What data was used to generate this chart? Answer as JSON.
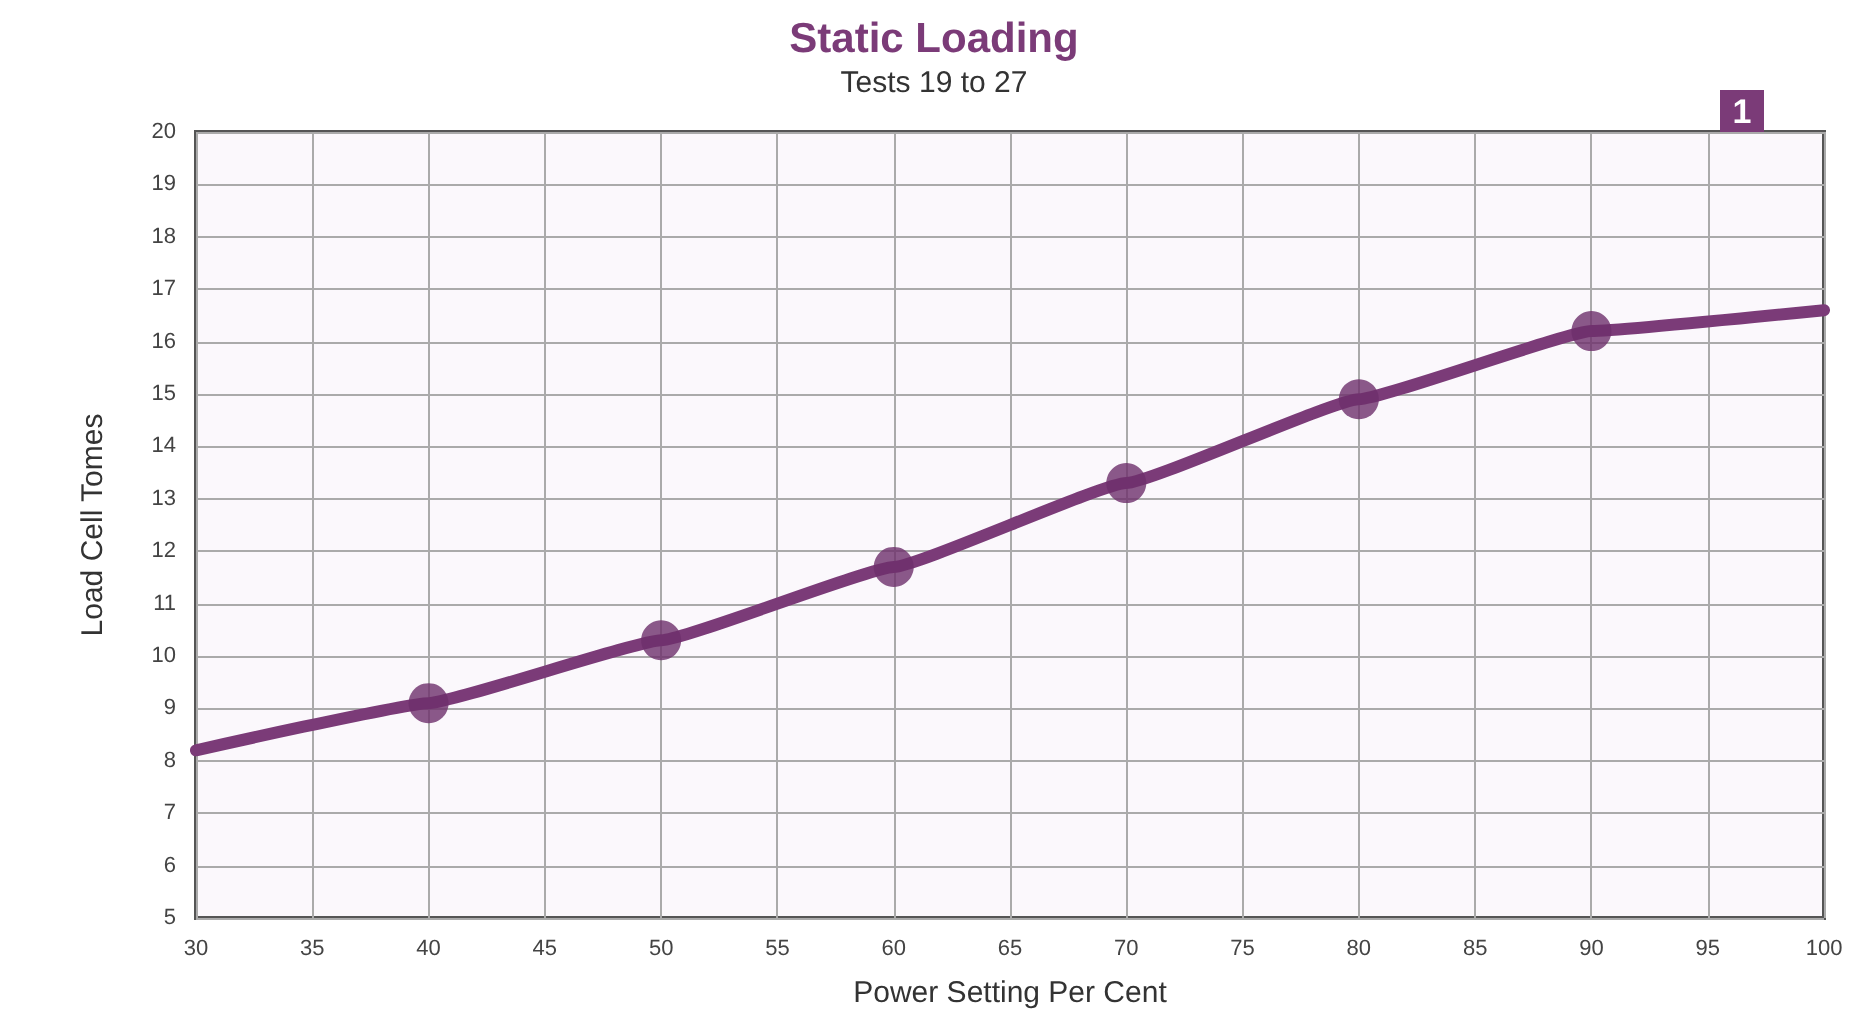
{
  "chart_data": {
    "type": "line",
    "title": "Static Loading",
    "subtitle": "Tests 19 to 27",
    "xlabel": "Power Setting Per Cent",
    "ylabel": "Load Cell Tomes",
    "annotations": [
      "1"
    ],
    "series": [
      {
        "color": "#7b3b78",
        "x": [
          30,
          40,
          50,
          60,
          70,
          80,
          90,
          100
        ],
        "values": [
          8.2,
          9.1,
          10.3,
          11.7,
          13.3,
          14.9,
          16.2,
          16.6
        ],
        "marker": "none"
      },
      {
        "type": "scatter",
        "color": "#6e2f6b",
        "x": [
          40,
          50,
          60,
          70,
          80,
          90
        ],
        "values": [
          9.1,
          10.3,
          11.7,
          13.3,
          14.9,
          16.2
        ],
        "marker": "circle"
      }
    ],
    "xlim": [
      30,
      100
    ],
    "xticks": [
      30,
      35,
      40,
      45,
      50,
      55,
      60,
      65,
      70,
      75,
      80,
      85,
      90,
      95,
      100
    ],
    "ylim": [
      5,
      20
    ],
    "yticks": [
      5,
      6,
      7,
      8,
      9,
      10,
      11,
      12,
      13,
      14,
      15,
      16,
      17,
      18,
      19,
      20
    ],
    "grid": true
  }
}
